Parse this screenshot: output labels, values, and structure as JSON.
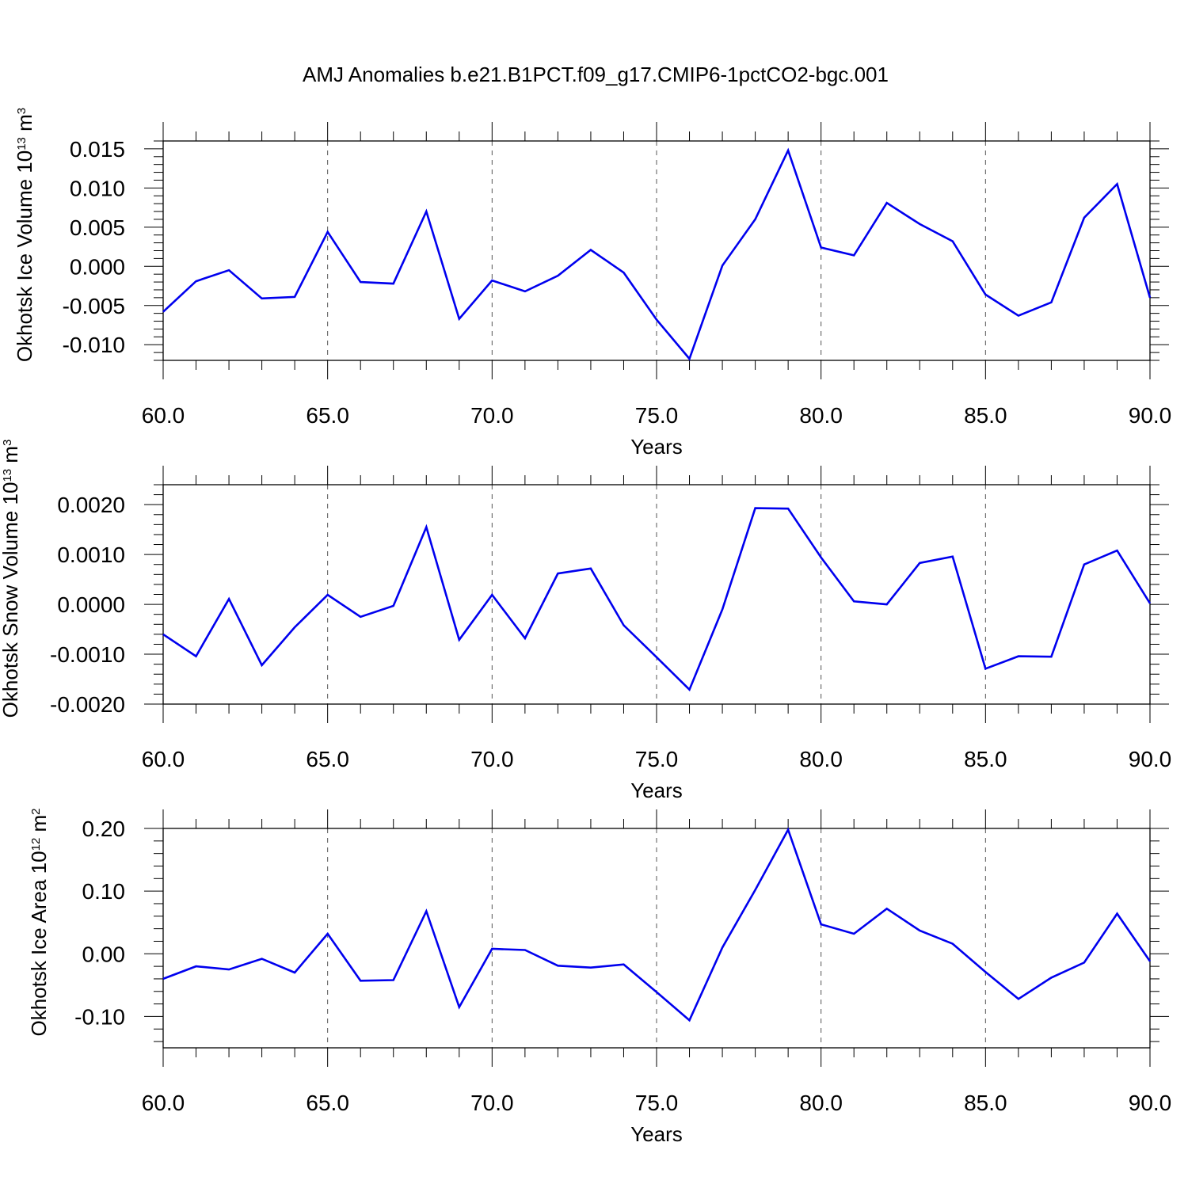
{
  "figure_title": "AMJ Anomalies b.e21.B1PCT.f09_g17.CMIP6-1pctCO2-bgc.001",
  "chart_data": [
    {
      "type": "line",
      "xlabel": "Years",
      "ylabel_main": "Okhotsk Ice Volume 10",
      "ylabel_exp": "13",
      "ylabel_unit": " m",
      "ylabel_unit_exp": "3",
      "xlim": [
        60,
        90
      ],
      "ylim": [
        -0.012,
        0.016
      ],
      "x_ticks": [
        60,
        65,
        70,
        75,
        80,
        85,
        90
      ],
      "x_tick_labels": [
        "60.0",
        "65.0",
        "70.0",
        "75.0",
        "80.0",
        "85.0",
        "90.0"
      ],
      "y_ticks": [
        0.015,
        0.01,
        0.005,
        0.0,
        -0.005,
        -0.01
      ],
      "y_tick_labels": [
        "0.015",
        "0.010",
        "0.005",
        "0.000",
        "-0.005",
        "-0.010"
      ],
      "y_minor_step": 0.001,
      "line_color": "#0000ee",
      "grid": "vertical dashed at major x ticks",
      "x": [
        60,
        61,
        62,
        63,
        64,
        65,
        66,
        67,
        68,
        69,
        70,
        71,
        72,
        73,
        74,
        75,
        76,
        77,
        78,
        79,
        80,
        81,
        82,
        83,
        84,
        85,
        86,
        87,
        88,
        89,
        90
      ],
      "values": [
        -0.0058,
        -0.0019,
        -0.0005,
        -0.0041,
        -0.0039,
        0.0044,
        -0.002,
        -0.0022,
        0.007,
        -0.0067,
        -0.0018,
        -0.0032,
        -0.0012,
        0.0021,
        -0.0008,
        -0.0068,
        -0.0118,
        0.0001,
        0.006,
        0.0148,
        0.0024,
        0.0014,
        0.0081,
        0.0054,
        0.0032,
        -0.0036,
        -0.0063,
        -0.0046,
        0.0062,
        0.0105,
        -0.004
      ]
    },
    {
      "type": "line",
      "xlabel": "Years",
      "ylabel_main": "Okhotsk Snow Volume 10",
      "ylabel_exp": "13",
      "ylabel_unit": " m",
      "ylabel_unit_exp": "3",
      "xlim": [
        60,
        90
      ],
      "ylim": [
        -0.002,
        0.0024
      ],
      "x_ticks": [
        60,
        65,
        70,
        75,
        80,
        85,
        90
      ],
      "x_tick_labels": [
        "60.0",
        "65.0",
        "70.0",
        "75.0",
        "80.0",
        "85.0",
        "90.0"
      ],
      "y_ticks": [
        0.002,
        0.001,
        0.0,
        -0.001,
        -0.002
      ],
      "y_tick_labels": [
        "0.0020",
        "0.0010",
        "0.0000",
        "-0.0010",
        "-0.0020"
      ],
      "y_minor_step": 0.0002,
      "line_color": "#0000ee",
      "grid": "vertical dashed at major x ticks",
      "x": [
        60,
        61,
        62,
        63,
        64,
        65,
        66,
        67,
        68,
        69,
        70,
        71,
        72,
        73,
        74,
        75,
        76,
        77,
        78,
        79,
        80,
        81,
        82,
        83,
        84,
        85,
        86,
        87,
        88,
        89,
        90
      ],
      "values": [
        -0.0006,
        -0.00104,
        0.00011,
        -0.00122,
        -0.00046,
        0.00019,
        -0.00025,
        -3e-05,
        0.00155,
        -0.00071,
        0.00019,
        -0.00068,
        0.00062,
        0.00072,
        -0.00042,
        -0.00106,
        -0.00171,
        -0.0001,
        0.00193,
        0.00192,
        0.00094,
        6e-05,
        0.0,
        0.00083,
        0.00096,
        -0.00129,
        -0.00104,
        -0.00105,
        0.0008,
        0.00108,
        2e-05
      ]
    },
    {
      "type": "line",
      "xlabel": "Years",
      "ylabel_main": "Okhotsk Ice Area 10",
      "ylabel_exp": "12",
      "ylabel_unit": " m",
      "ylabel_unit_exp": "2",
      "xlim": [
        60,
        90
      ],
      "ylim": [
        -0.15,
        0.2
      ],
      "x_ticks": [
        60,
        65,
        70,
        75,
        80,
        85,
        90
      ],
      "x_tick_labels": [
        "60.0",
        "65.0",
        "70.0",
        "75.0",
        "80.0",
        "85.0",
        "90.0"
      ],
      "y_ticks": [
        0.2,
        0.1,
        0.0,
        -0.1
      ],
      "y_tick_labels": [
        "0.20",
        "0.10",
        "0.00",
        "-0.10"
      ],
      "y_minor_step": 0.02,
      "line_color": "#0000ee",
      "grid": "vertical dashed at major x ticks",
      "x": [
        60,
        61,
        62,
        63,
        64,
        65,
        66,
        67,
        68,
        69,
        70,
        71,
        72,
        73,
        74,
        75,
        76,
        77,
        78,
        79,
        80,
        81,
        82,
        83,
        84,
        85,
        86,
        87,
        88,
        89,
        90
      ],
      "values": [
        -0.04,
        -0.02,
        -0.025,
        -0.008,
        -0.03,
        0.032,
        -0.043,
        -0.042,
        0.068,
        -0.085,
        0.008,
        0.006,
        -0.019,
        -0.022,
        -0.017,
        -0.061,
        -0.106,
        0.01,
        0.102,
        0.198,
        0.047,
        0.032,
        0.072,
        0.037,
        0.016,
        -0.029,
        -0.072,
        -0.038,
        -0.014,
        0.064,
        -0.012
      ]
    }
  ]
}
